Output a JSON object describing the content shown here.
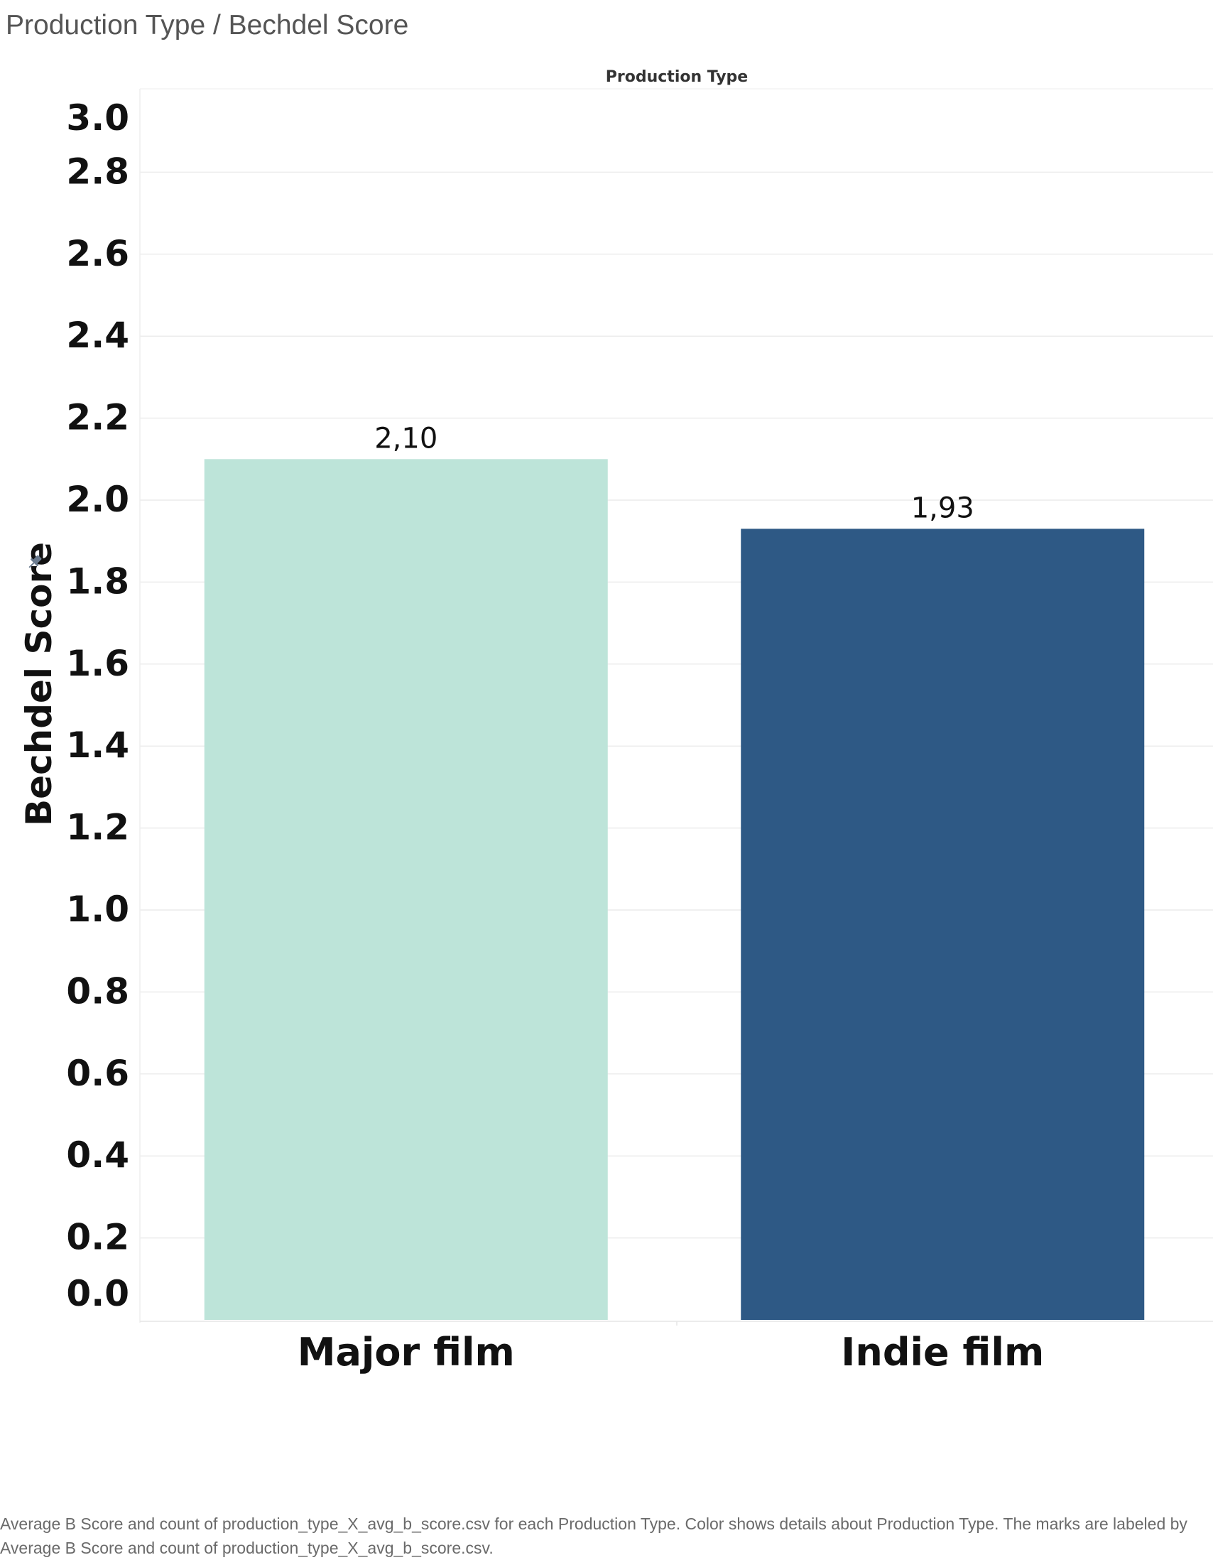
{
  "title": "Production Type / Bechdel Score",
  "footnote": "Average B Score and count of production_type_X_avg_b_score.csv for each Production Type.  Color shows details about Production Type.  The marks are labeled by Average B Score and count of production_type_X_avg_b_score.csv.",
  "icons": {
    "axis_pin": "pin-icon"
  },
  "chart_data": {
    "type": "bar",
    "column_header": "Production Type",
    "categories": [
      "Major film",
      "Indie film"
    ],
    "values": [
      2.1,
      1.93
    ],
    "data_labels": [
      "2,10",
      "1,93"
    ],
    "colors": [
      "#bde4d9",
      "#2e5985"
    ],
    "ylabel": "Bechdel Score",
    "xlabel": "",
    "ylim": [
      0,
      3.0
    ],
    "yticks": [
      "0.0",
      "0.2",
      "0.4",
      "0.6",
      "0.8",
      "1.0",
      "1.2",
      "1.4",
      "1.6",
      "1.8",
      "2.0",
      "2.2",
      "2.4",
      "2.6",
      "2.8",
      "3.0"
    ],
    "grid": true,
    "legend": "none"
  }
}
